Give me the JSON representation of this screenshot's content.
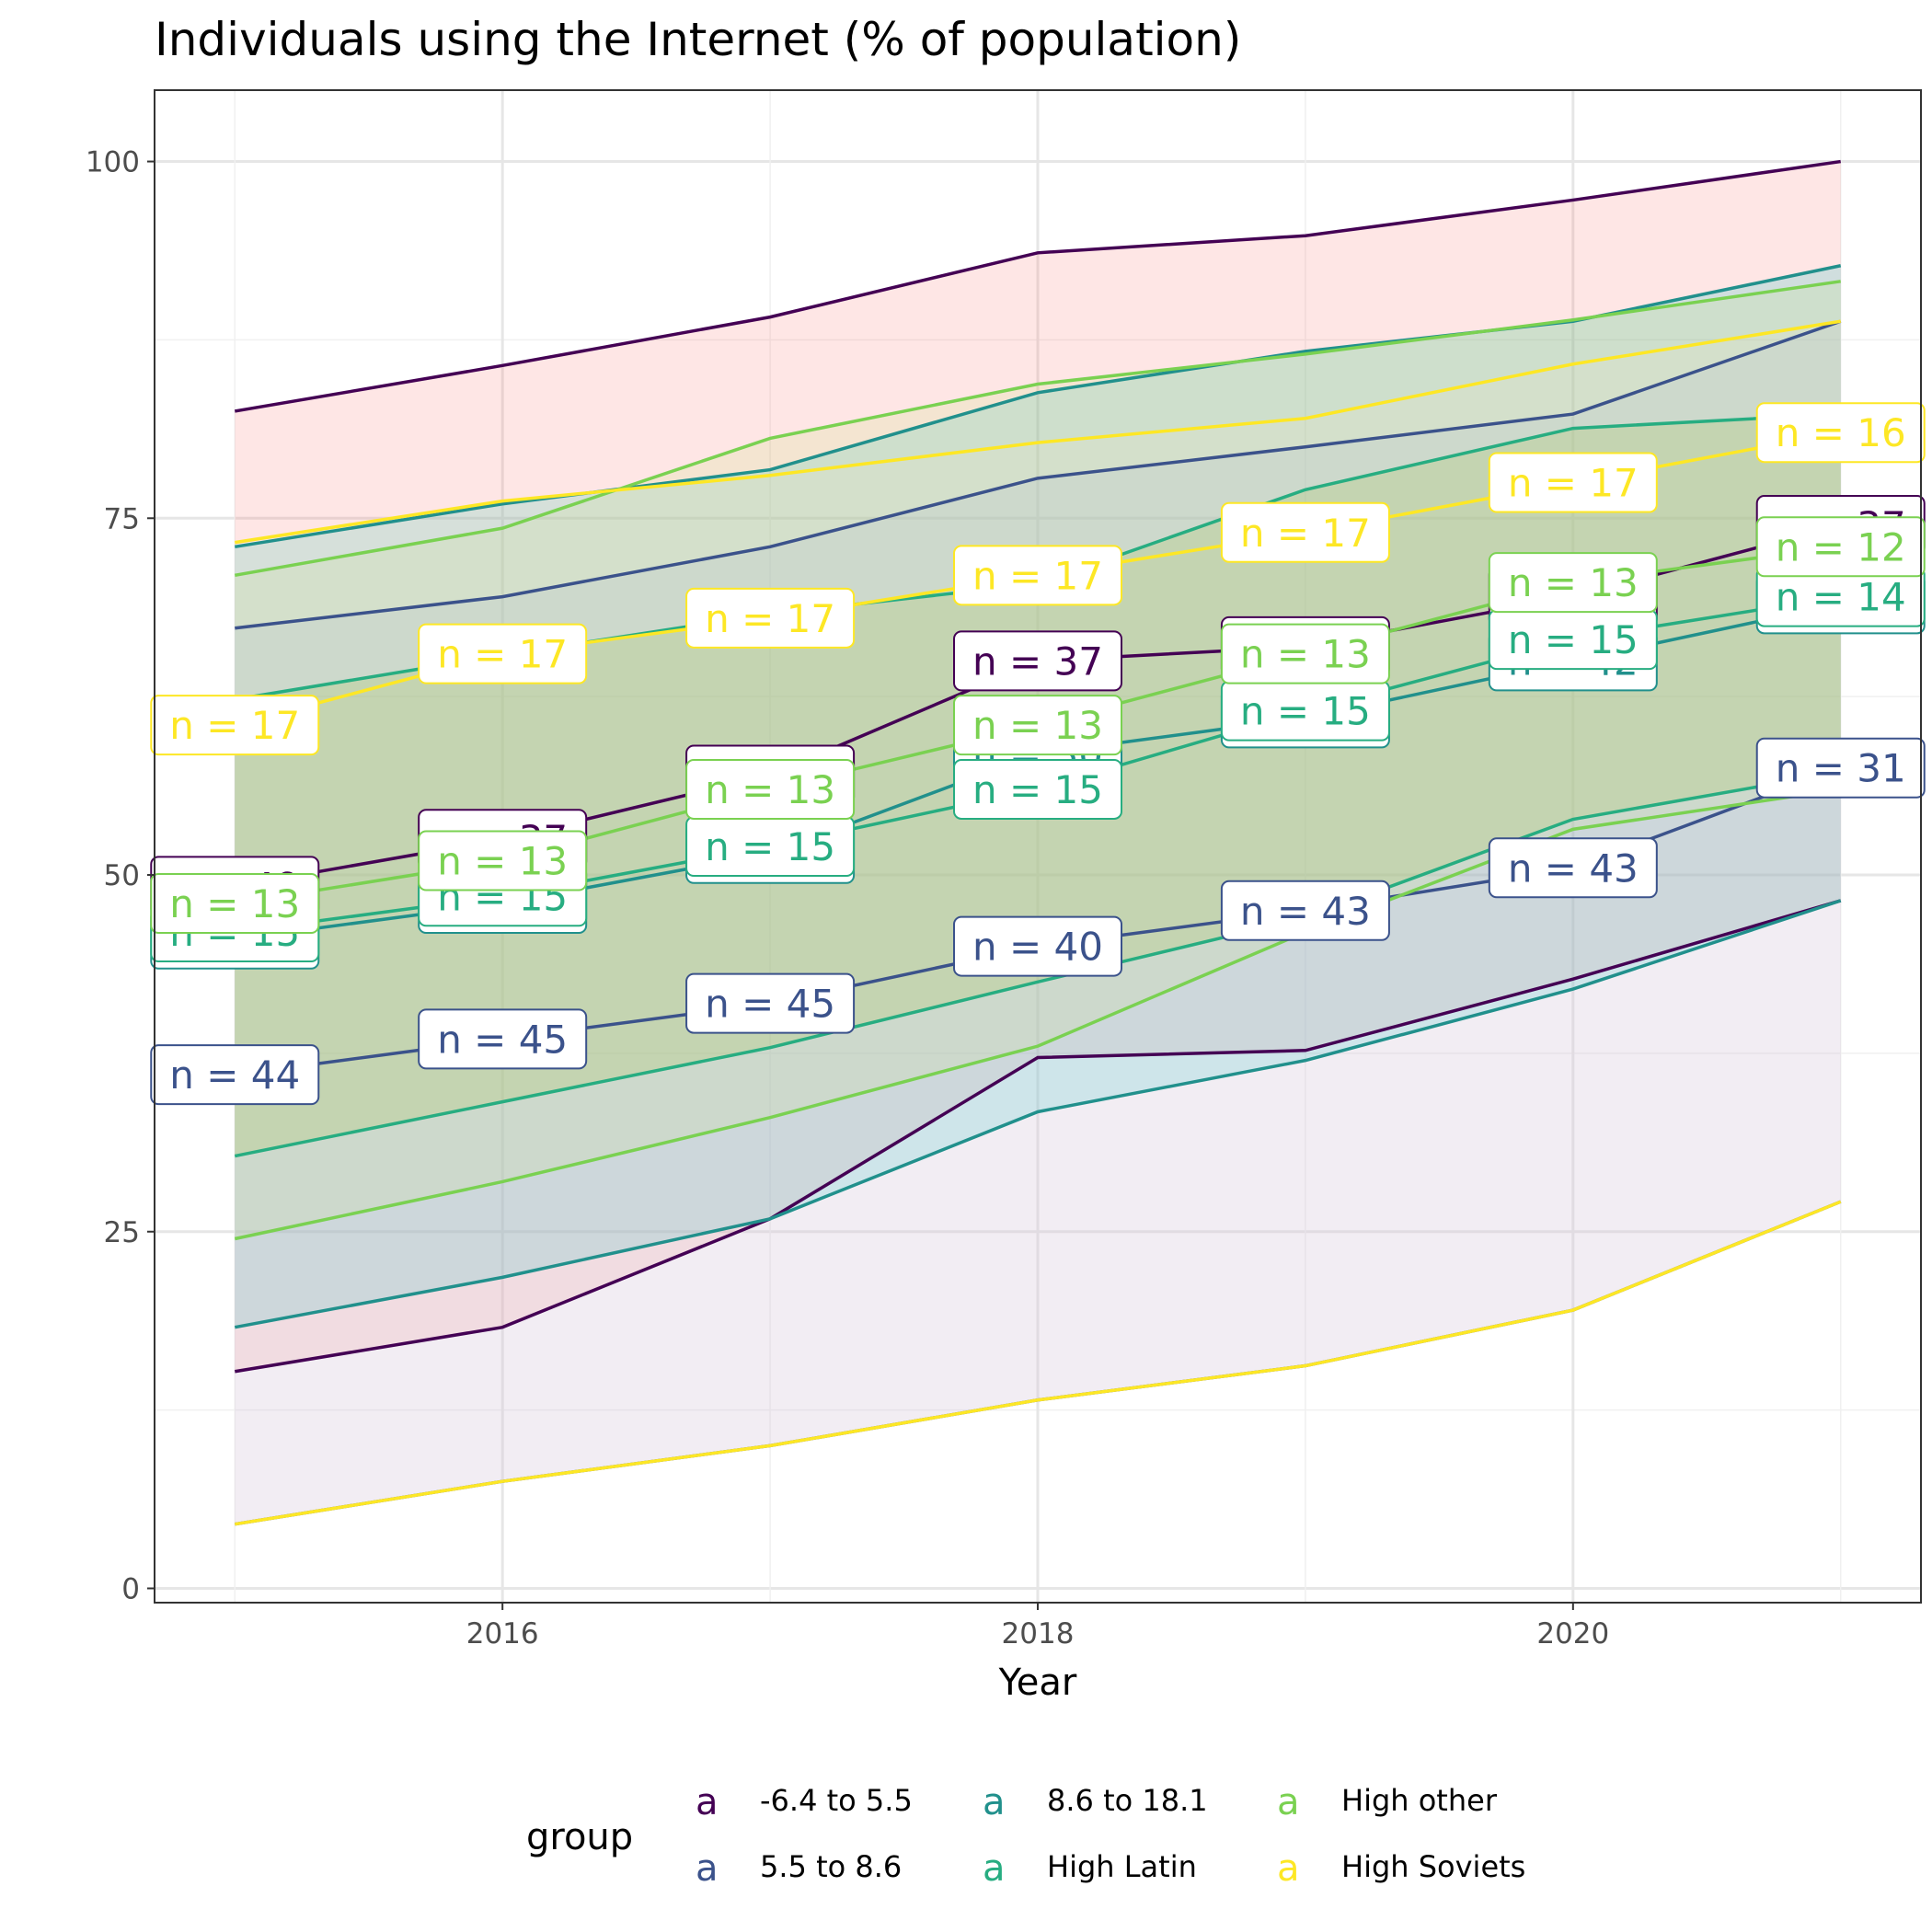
{
  "chart_data": {
    "type": "area",
    "title": "Individuals using the Internet (% of population)",
    "xlabel": "Year",
    "ylabel": "",
    "xlim": [
      2014.7,
      2021.3
    ],
    "ylim": [
      -1,
      105
    ],
    "x_ticks": [
      2016,
      2018,
      2020
    ],
    "y_ticks": [
      0,
      25,
      50,
      75,
      100
    ],
    "grid": true,
    "legend": {
      "title": "group",
      "placement": "bottom",
      "key_glyph": "a"
    },
    "x": [
      2015,
      2016,
      2017,
      2018,
      2019,
      2020,
      2021
    ],
    "series": [
      {
        "name": "-6.4 to 5.5",
        "color": "#440154",
        "fill": "#F8766D",
        "upper": [
          82.5,
          85.7,
          89.1,
          93.6,
          94.8,
          97.3,
          100
        ],
        "lower": [
          15.2,
          18.3,
          25.9,
          37.2,
          37.7,
          42.7,
          48.2
        ],
        "median": [
          49.2,
          52.5,
          57.0,
          65.0,
          66.0,
          69.5,
          74.5
        ],
        "n_labels": [
          {
            "x": 2015,
            "y": 49.2,
            "text": "n = 49"
          },
          {
            "x": 2016,
            "y": 52.5,
            "text": "n = 37"
          },
          {
            "x": 2017,
            "y": 57.0,
            "text": "n = 37"
          },
          {
            "x": 2018,
            "y": 65.0,
            "text": "n = 37"
          },
          {
            "x": 2019,
            "y": 66.0,
            "text": "n = 37"
          },
          {
            "x": 2020,
            "y": 69.5,
            "text": "n = 37"
          },
          {
            "x": 2021,
            "y": 74.5,
            "text": "n = 37"
          }
        ]
      },
      {
        "name": "5.5 to 8.6",
        "color": "#3B528B",
        "fill": "#B79FF6",
        "upper": [
          67.3,
          69.5,
          73.0,
          77.8,
          80.0,
          82.3,
          88.8
        ],
        "lower": [
          4.5,
          7.5,
          10.0,
          13.2,
          15.6,
          19.5,
          27.1
        ],
        "median": [
          36.0,
          38.5,
          41.0,
          45.0,
          47.5,
          50.5,
          57.5
        ],
        "n_labels": [
          {
            "x": 2015,
            "y": 36.0,
            "text": "n = 44"
          },
          {
            "x": 2016,
            "y": 38.5,
            "text": "n = 45"
          },
          {
            "x": 2017,
            "y": 41.0,
            "text": "n = 45"
          },
          {
            "x": 2018,
            "y": 45.0,
            "text": "n = 40"
          },
          {
            "x": 2019,
            "y": 47.5,
            "text": "n = 43"
          },
          {
            "x": 2020,
            "y": 50.5,
            "text": "n = 43"
          },
          {
            "x": 2021,
            "y": 57.5,
            "text": "n = 31"
          }
        ]
      },
      {
        "name": "8.6 to 18.1",
        "color": "#21908C",
        "fill": "#00BFC4",
        "upper": [
          73.0,
          76.0,
          78.4,
          83.8,
          86.7,
          88.8,
          92.7
        ],
        "lower": [
          18.3,
          21.8,
          25.9,
          33.4,
          37.0,
          42.0,
          48.2
        ],
        "median": [
          45.5,
          48.0,
          51.5,
          58.5,
          61.0,
          65.0,
          69.0
        ],
        "n_labels": [
          {
            "x": 2015,
            "y": 45.5,
            "text": "n = 45"
          },
          {
            "x": 2016,
            "y": 48.0,
            "text": "n = 45"
          },
          {
            "x": 2017,
            "y": 51.5,
            "text": "n = 45"
          },
          {
            "x": 2018,
            "y": 58.5,
            "text": "n = 30"
          },
          {
            "x": 2019,
            "y": 61.0,
            "text": "n = 42"
          },
          {
            "x": 2020,
            "y": 65.0,
            "text": "n = 42"
          },
          {
            "x": 2021,
            "y": 69.0,
            "text": "n = 14"
          }
        ]
      },
      {
        "name": "High Latin",
        "color": "#27AD81",
        "fill": "#7CAE00",
        "upper": [
          62.3,
          65.4,
          68.3,
          70.4,
          77.0,
          81.3,
          82.3
        ],
        "lower": [
          30.3,
          34.1,
          37.9,
          42.5,
          47.0,
          53.9,
          57.2
        ],
        "median": [
          46.0,
          48.5,
          52.0,
          56.0,
          61.5,
          66.5,
          69.5
        ],
        "n_labels": [
          {
            "x": 2015,
            "y": 46.0,
            "text": "n = 15"
          },
          {
            "x": 2016,
            "y": 48.5,
            "text": "n = 15"
          },
          {
            "x": 2017,
            "y": 52.0,
            "text": "n = 15"
          },
          {
            "x": 2018,
            "y": 56.0,
            "text": "n = 15"
          },
          {
            "x": 2019,
            "y": 61.5,
            "text": "n = 15"
          },
          {
            "x": 2020,
            "y": 66.5,
            "text": "n = 15"
          },
          {
            "x": 2021,
            "y": 69.5,
            "text": "n = 14"
          }
        ]
      },
      {
        "name": "High other",
        "color": "#7AD151",
        "fill": "#C7E67A",
        "upper": [
          71.0,
          74.3,
          80.6,
          84.4,
          86.5,
          88.9,
          91.6
        ],
        "lower": [
          24.5,
          28.5,
          33.0,
          38.0,
          46.0,
          53.2,
          56.0
        ],
        "median": [
          48.0,
          51.0,
          56.0,
          60.5,
          65.5,
          70.5,
          73.0
        ],
        "n_labels": [
          {
            "x": 2015,
            "y": 48.0,
            "text": "n = 13"
          },
          {
            "x": 2016,
            "y": 51.0,
            "text": "n = 13"
          },
          {
            "x": 2017,
            "y": 56.0,
            "text": "n = 13"
          },
          {
            "x": 2018,
            "y": 60.5,
            "text": "n = 13"
          },
          {
            "x": 2019,
            "y": 65.5,
            "text": "n = 13"
          },
          {
            "x": 2020,
            "y": 70.5,
            "text": "n = 13"
          },
          {
            "x": 2021,
            "y": 73.0,
            "text": "n = 12"
          }
        ]
      },
      {
        "name": "High Soviets",
        "color": "#FDE725",
        "fill": "#F2EBC6",
        "upper": [
          73.3,
          76.2,
          78.0,
          80.3,
          82.0,
          85.8,
          88.8
        ],
        "lower": [
          4.5,
          7.5,
          10.0,
          13.2,
          15.6,
          19.5,
          27.1
        ],
        "median": [
          60.5,
          65.5,
          68.0,
          71.0,
          74.0,
          77.5,
          81.0
        ],
        "n_labels": [
          {
            "x": 2015,
            "y": 60.5,
            "text": "n = 17"
          },
          {
            "x": 2016,
            "y": 65.5,
            "text": "n = 17"
          },
          {
            "x": 2017,
            "y": 68.0,
            "text": "n = 17"
          },
          {
            "x": 2018,
            "y": 71.0,
            "text": "n = 17"
          },
          {
            "x": 2019,
            "y": 74.0,
            "text": "n = 17"
          },
          {
            "x": 2020,
            "y": 77.5,
            "text": "n = 17"
          },
          {
            "x": 2021,
            "y": 81.0,
            "text": "n = 16"
          }
        ]
      }
    ]
  }
}
